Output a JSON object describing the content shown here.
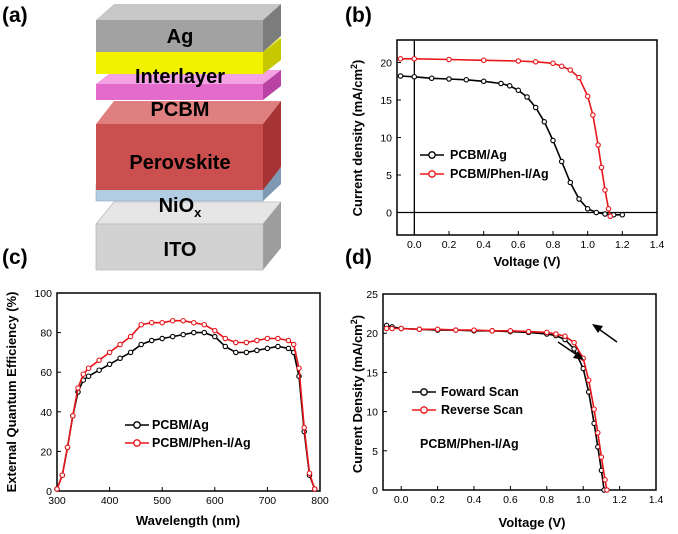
{
  "panel_labels": [
    "(a)",
    "(b)",
    "(c)",
    "(d)"
  ],
  "device": {
    "layers": [
      {
        "label": "Ag",
        "color": "#9c9c9c"
      },
      {
        "label": "Interlayer",
        "color": "#f0f000"
      },
      {
        "label": "PCBM",
        "color": "#e060c8"
      },
      {
        "label": "Perovskite",
        "color": "#cc4a4a"
      },
      {
        "label": "NiO",
        "sub": "x",
        "color": "#a8c4dc"
      },
      {
        "label": "ITO",
        "color": "#cfcfcf"
      }
    ]
  },
  "colors": {
    "ref": "#000000",
    "mod": "#e8161b"
  },
  "chart_data": [
    {
      "id": "b",
      "type": "line",
      "xlabel": "Voltage (V)",
      "ylabel": "Current density (mA/cm2)",
      "ylabel_main": "Current density (mA/cm",
      "ylabel_sup": "2",
      "ylabel_end": ")",
      "xlim": [
        -0.1,
        1.4
      ],
      "ylim": [
        -3,
        23
      ],
      "xticks": [
        "0.0",
        "0.2",
        "0.4",
        "0.6",
        "0.8",
        "1.0",
        "1.2",
        "1.4"
      ],
      "yticks": [
        "0",
        "5",
        "10",
        "15",
        "20"
      ],
      "legend": [
        "PCBM/Ag",
        "PCBM/Phen-I/Ag"
      ],
      "series": [
        {
          "name": "PCBM/Ag",
          "x": [
            -0.08,
            0.0,
            0.1,
            0.2,
            0.3,
            0.4,
            0.5,
            0.55,
            0.6,
            0.65,
            0.7,
            0.75,
            0.8,
            0.85,
            0.9,
            0.95,
            1.0,
            1.05,
            1.1,
            1.15,
            1.2
          ],
          "y": [
            18.2,
            18.1,
            17.9,
            17.8,
            17.7,
            17.5,
            17.2,
            16.9,
            16.3,
            15.4,
            14.0,
            12.1,
            9.6,
            6.8,
            4.0,
            1.8,
            0.5,
            0.0,
            -0.2,
            -0.3,
            -0.3
          ]
        },
        {
          "name": "PCBM/Phen-I/Ag",
          "x": [
            -0.08,
            0.0,
            0.2,
            0.4,
            0.6,
            0.7,
            0.8,
            0.85,
            0.9,
            0.95,
            1.0,
            1.03,
            1.06,
            1.08,
            1.1,
            1.12,
            1.13
          ],
          "y": [
            20.5,
            20.5,
            20.4,
            20.3,
            20.2,
            20.1,
            19.9,
            19.5,
            19.0,
            18.0,
            15.5,
            13.0,
            9.0,
            6.0,
            3.0,
            0.5,
            -0.5
          ]
        }
      ]
    },
    {
      "id": "c",
      "type": "line",
      "xlabel": "Wavelength (nm)",
      "ylabel": "External Quantum Efficiency (%)",
      "xlim": [
        300,
        800
      ],
      "ylim": [
        0,
        100
      ],
      "xticks": [
        "300",
        "400",
        "500",
        "600",
        "700",
        "800"
      ],
      "yticks": [
        "0",
        "20",
        "40",
        "60",
        "80",
        "100"
      ],
      "legend": [
        "PCBM/Ag",
        "PCBM/Phen-I/Ag"
      ],
      "series": [
        {
          "name": "PCBM/Ag",
          "x": [
            300,
            310,
            320,
            330,
            340,
            350,
            360,
            380,
            400,
            420,
            440,
            460,
            480,
            500,
            520,
            540,
            560,
            580,
            600,
            620,
            640,
            660,
            680,
            700,
            720,
            740,
            750,
            760,
            770,
            780,
            790
          ],
          "y": [
            1,
            8,
            22,
            38,
            50,
            56,
            58,
            61,
            64,
            67,
            70,
            74,
            76,
            77,
            78,
            79,
            80,
            80,
            78,
            73,
            70,
            70,
            71,
            72,
            73,
            72,
            70,
            58,
            30,
            8,
            1
          ]
        },
        {
          "name": "PCBM/Phen-I/Ag",
          "x": [
            300,
            310,
            320,
            330,
            340,
            350,
            360,
            380,
            400,
            420,
            440,
            460,
            480,
            500,
            520,
            540,
            560,
            580,
            600,
            620,
            640,
            660,
            680,
            700,
            720,
            740,
            750,
            760,
            770,
            780,
            790
          ],
          "y": [
            1,
            8,
            22,
            38,
            52,
            59,
            62,
            66,
            70,
            74,
            78,
            84,
            85,
            85,
            86,
            86,
            85,
            84,
            81,
            77,
            75,
            75,
            76,
            77,
            77,
            76,
            74,
            62,
            32,
            9,
            1
          ]
        }
      ]
    },
    {
      "id": "d",
      "type": "line",
      "xlabel": "Voltage (V)",
      "ylabel": "Current Density (mA/cm2)",
      "ylabel_main": "Current Density (mA/cm",
      "ylabel_sup": "2",
      "ylabel_end": ")",
      "xlim": [
        -0.1,
        1.4
      ],
      "ylim": [
        0,
        25
      ],
      "xticks": [
        "0.0",
        "0.2",
        "0.4",
        "0.6",
        "0.8",
        "1.0",
        "1.2",
        "1.4"
      ],
      "yticks": [
        "0",
        "5",
        "10",
        "15",
        "20",
        "25"
      ],
      "legend": [
        "Foward Scan",
        "Reverse Scan"
      ],
      "annotation": "PCBM/Phen-I/Ag",
      "series": [
        {
          "name": "Foward Scan",
          "x": [
            -0.08,
            -0.05,
            0.0,
            0.1,
            0.2,
            0.3,
            0.4,
            0.5,
            0.6,
            0.7,
            0.8,
            0.85,
            0.9,
            0.95,
            1.0,
            1.03,
            1.06,
            1.08,
            1.1,
            1.115
          ],
          "y": [
            21.0,
            20.8,
            20.6,
            20.5,
            20.4,
            20.4,
            20.3,
            20.3,
            20.2,
            20.1,
            19.9,
            19.7,
            19.2,
            18.0,
            15.5,
            12.5,
            8.5,
            5.5,
            2.5,
            0.0
          ]
        },
        {
          "name": "Reverse Scan",
          "x": [
            -0.08,
            -0.05,
            0.0,
            0.1,
            0.2,
            0.3,
            0.4,
            0.5,
            0.6,
            0.7,
            0.8,
            0.85,
            0.9,
            0.95,
            1.0,
            1.03,
            1.06,
            1.08,
            1.1,
            1.12,
            1.13
          ],
          "y": [
            20.6,
            20.6,
            20.6,
            20.5,
            20.5,
            20.4,
            20.4,
            20.3,
            20.3,
            20.2,
            20.1,
            19.9,
            19.6,
            18.8,
            16.8,
            14.0,
            10.3,
            7.3,
            4.2,
            1.3,
            0.0
          ]
        }
      ]
    }
  ]
}
